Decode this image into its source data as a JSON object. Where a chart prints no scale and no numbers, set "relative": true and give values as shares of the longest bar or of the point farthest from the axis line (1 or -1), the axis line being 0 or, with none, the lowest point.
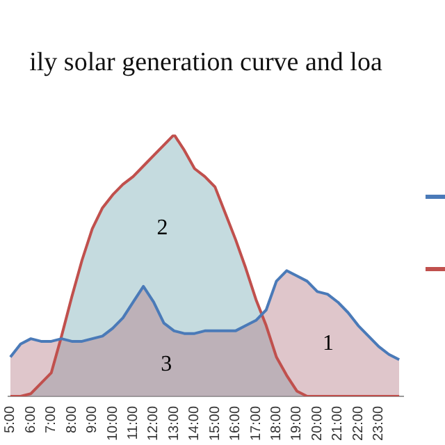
{
  "chart_data": {
    "type": "area",
    "title": "ily solar generation curve and loa",
    "relative": true,
    "x": [
      5,
      5.5,
      6,
      6.5,
      7,
      7.5,
      8,
      8.5,
      9,
      9.5,
      10,
      10.5,
      11,
      11.5,
      12,
      12.5,
      13,
      13.5,
      14,
      14.5,
      15,
      15.5,
      16,
      16.5,
      17,
      17.5,
      18,
      18.5,
      19,
      19.5,
      20,
      20.5,
      21,
      21.5,
      22,
      22.5,
      23,
      23.5,
      24
    ],
    "xlim": [
      4.9,
      24.2
    ],
    "xticks": [
      {
        "value": 5,
        "label": "5:00"
      },
      {
        "value": 6,
        "label": "6:00"
      },
      {
        "value": 7,
        "label": "7:00"
      },
      {
        "value": 8,
        "label": "8:00"
      },
      {
        "value": 9,
        "label": "9:00"
      },
      {
        "value": 10,
        "label": "10:00"
      },
      {
        "value": 11,
        "label": "11:00"
      },
      {
        "value": 12,
        "label": "12:00"
      },
      {
        "value": 13,
        "label": "13:00"
      },
      {
        "value": 14,
        "label": "14:00"
      },
      {
        "value": 15,
        "label": "15:00"
      },
      {
        "value": 16,
        "label": "16:00"
      },
      {
        "value": 17,
        "label": "17:00"
      },
      {
        "value": 18,
        "label": "18:00"
      },
      {
        "value": 19,
        "label": "19:00"
      },
      {
        "value": 20,
        "label": "20:00"
      },
      {
        "value": 21,
        "label": "21:00"
      },
      {
        "value": 22,
        "label": "22:00"
      },
      {
        "value": 23,
        "label": "23:00"
      }
    ],
    "series": [
      {
        "color": "#4a7ab8",
        "values": [
          0.15,
          0.2,
          0.22,
          0.21,
          0.21,
          0.22,
          0.21,
          0.21,
          0.22,
          0.23,
          0.26,
          0.3,
          0.36,
          0.42,
          0.36,
          0.28,
          0.25,
          0.24,
          0.24,
          0.25,
          0.25,
          0.25,
          0.25,
          0.27,
          0.29,
          0.33,
          0.44,
          0.48,
          0.46,
          0.44,
          0.4,
          0.39,
          0.36,
          0.32,
          0.27,
          0.23,
          0.19,
          0.16,
          0.14
        ]
      },
      {
        "color": "#c0504d",
        "values": [
          0,
          0,
          0.01,
          0.05,
          0.09,
          0.23,
          0.38,
          0.52,
          0.64,
          0.72,
          0.77,
          0.81,
          0.84,
          0.88,
          0.92,
          0.96,
          1,
          0.94,
          0.87,
          0.84,
          0.8,
          0.7,
          0.6,
          0.49,
          0.37,
          0.27,
          0.15,
          0.08,
          0.02,
          0,
          0,
          0,
          0,
          0,
          0,
          0,
          0,
          0,
          0
        ]
      }
    ],
    "annotations": [
      "1",
      "2",
      "3"
    ],
    "grid": false
  }
}
